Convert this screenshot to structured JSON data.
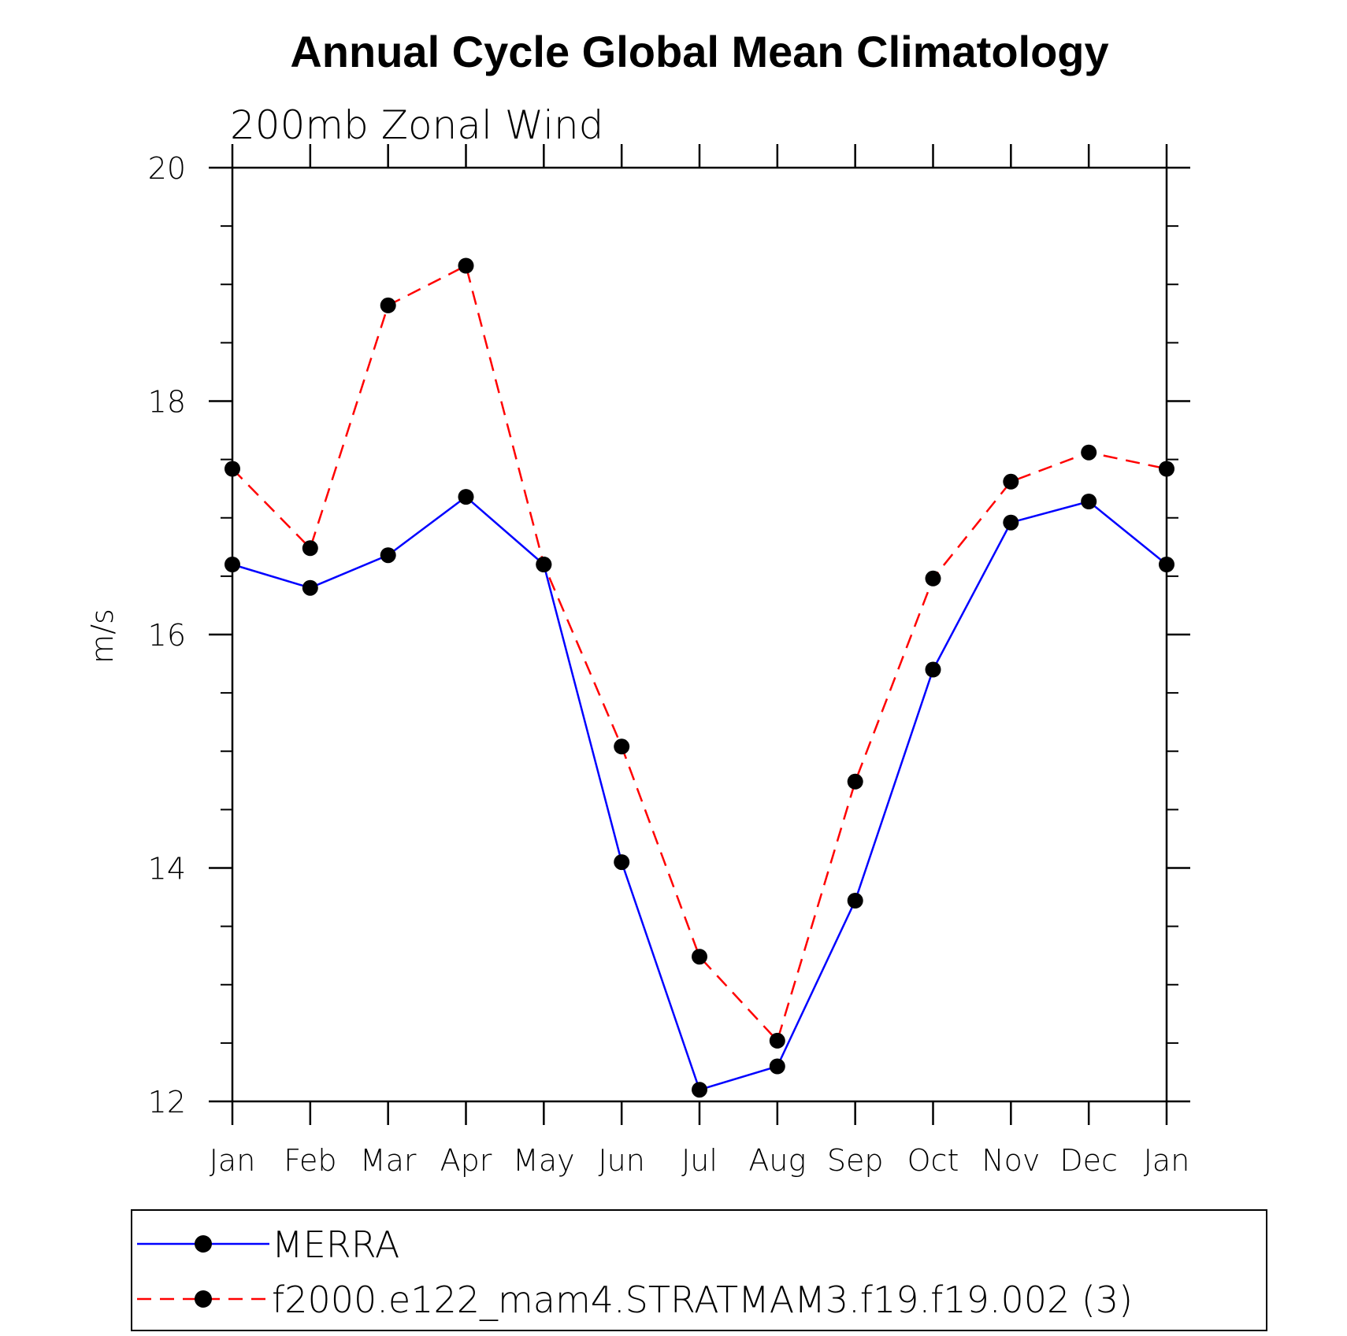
{
  "chart_data": {
    "type": "line",
    "title": "Annual Cycle Global Mean Climatology",
    "subtitle": "200mb  Zonal Wind",
    "xlabel": "",
    "ylabel": "m/s",
    "categories": [
      "Jan",
      "Feb",
      "Mar",
      "Apr",
      "May",
      "Jun",
      "Jul",
      "Aug",
      "Sep",
      "Oct",
      "Nov",
      "Dec",
      "Jan"
    ],
    "ylim": [
      12,
      20
    ],
    "yticks": [
      12,
      14,
      16,
      18,
      20
    ],
    "yminor_step": 0.5,
    "legend_position": "bottom",
    "series": [
      {
        "name": "MERRA",
        "color": "#0000ff",
        "line_style": "solid",
        "marker": "filled-circle",
        "values": [
          16.6,
          16.4,
          16.68,
          17.18,
          16.6,
          14.05,
          12.1,
          12.3,
          13.72,
          15.7,
          16.96,
          17.14,
          16.6
        ]
      },
      {
        "name": "f2000.e122_mam4.STRATMAM3.f19.f19.002 (3)",
        "color": "#ff0000",
        "line_style": "dashed",
        "marker": "filled-circle",
        "values": [
          17.42,
          16.74,
          18.82,
          19.16,
          16.6,
          15.04,
          13.24,
          12.52,
          14.74,
          16.48,
          17.31,
          17.56,
          17.42
        ]
      }
    ]
  }
}
